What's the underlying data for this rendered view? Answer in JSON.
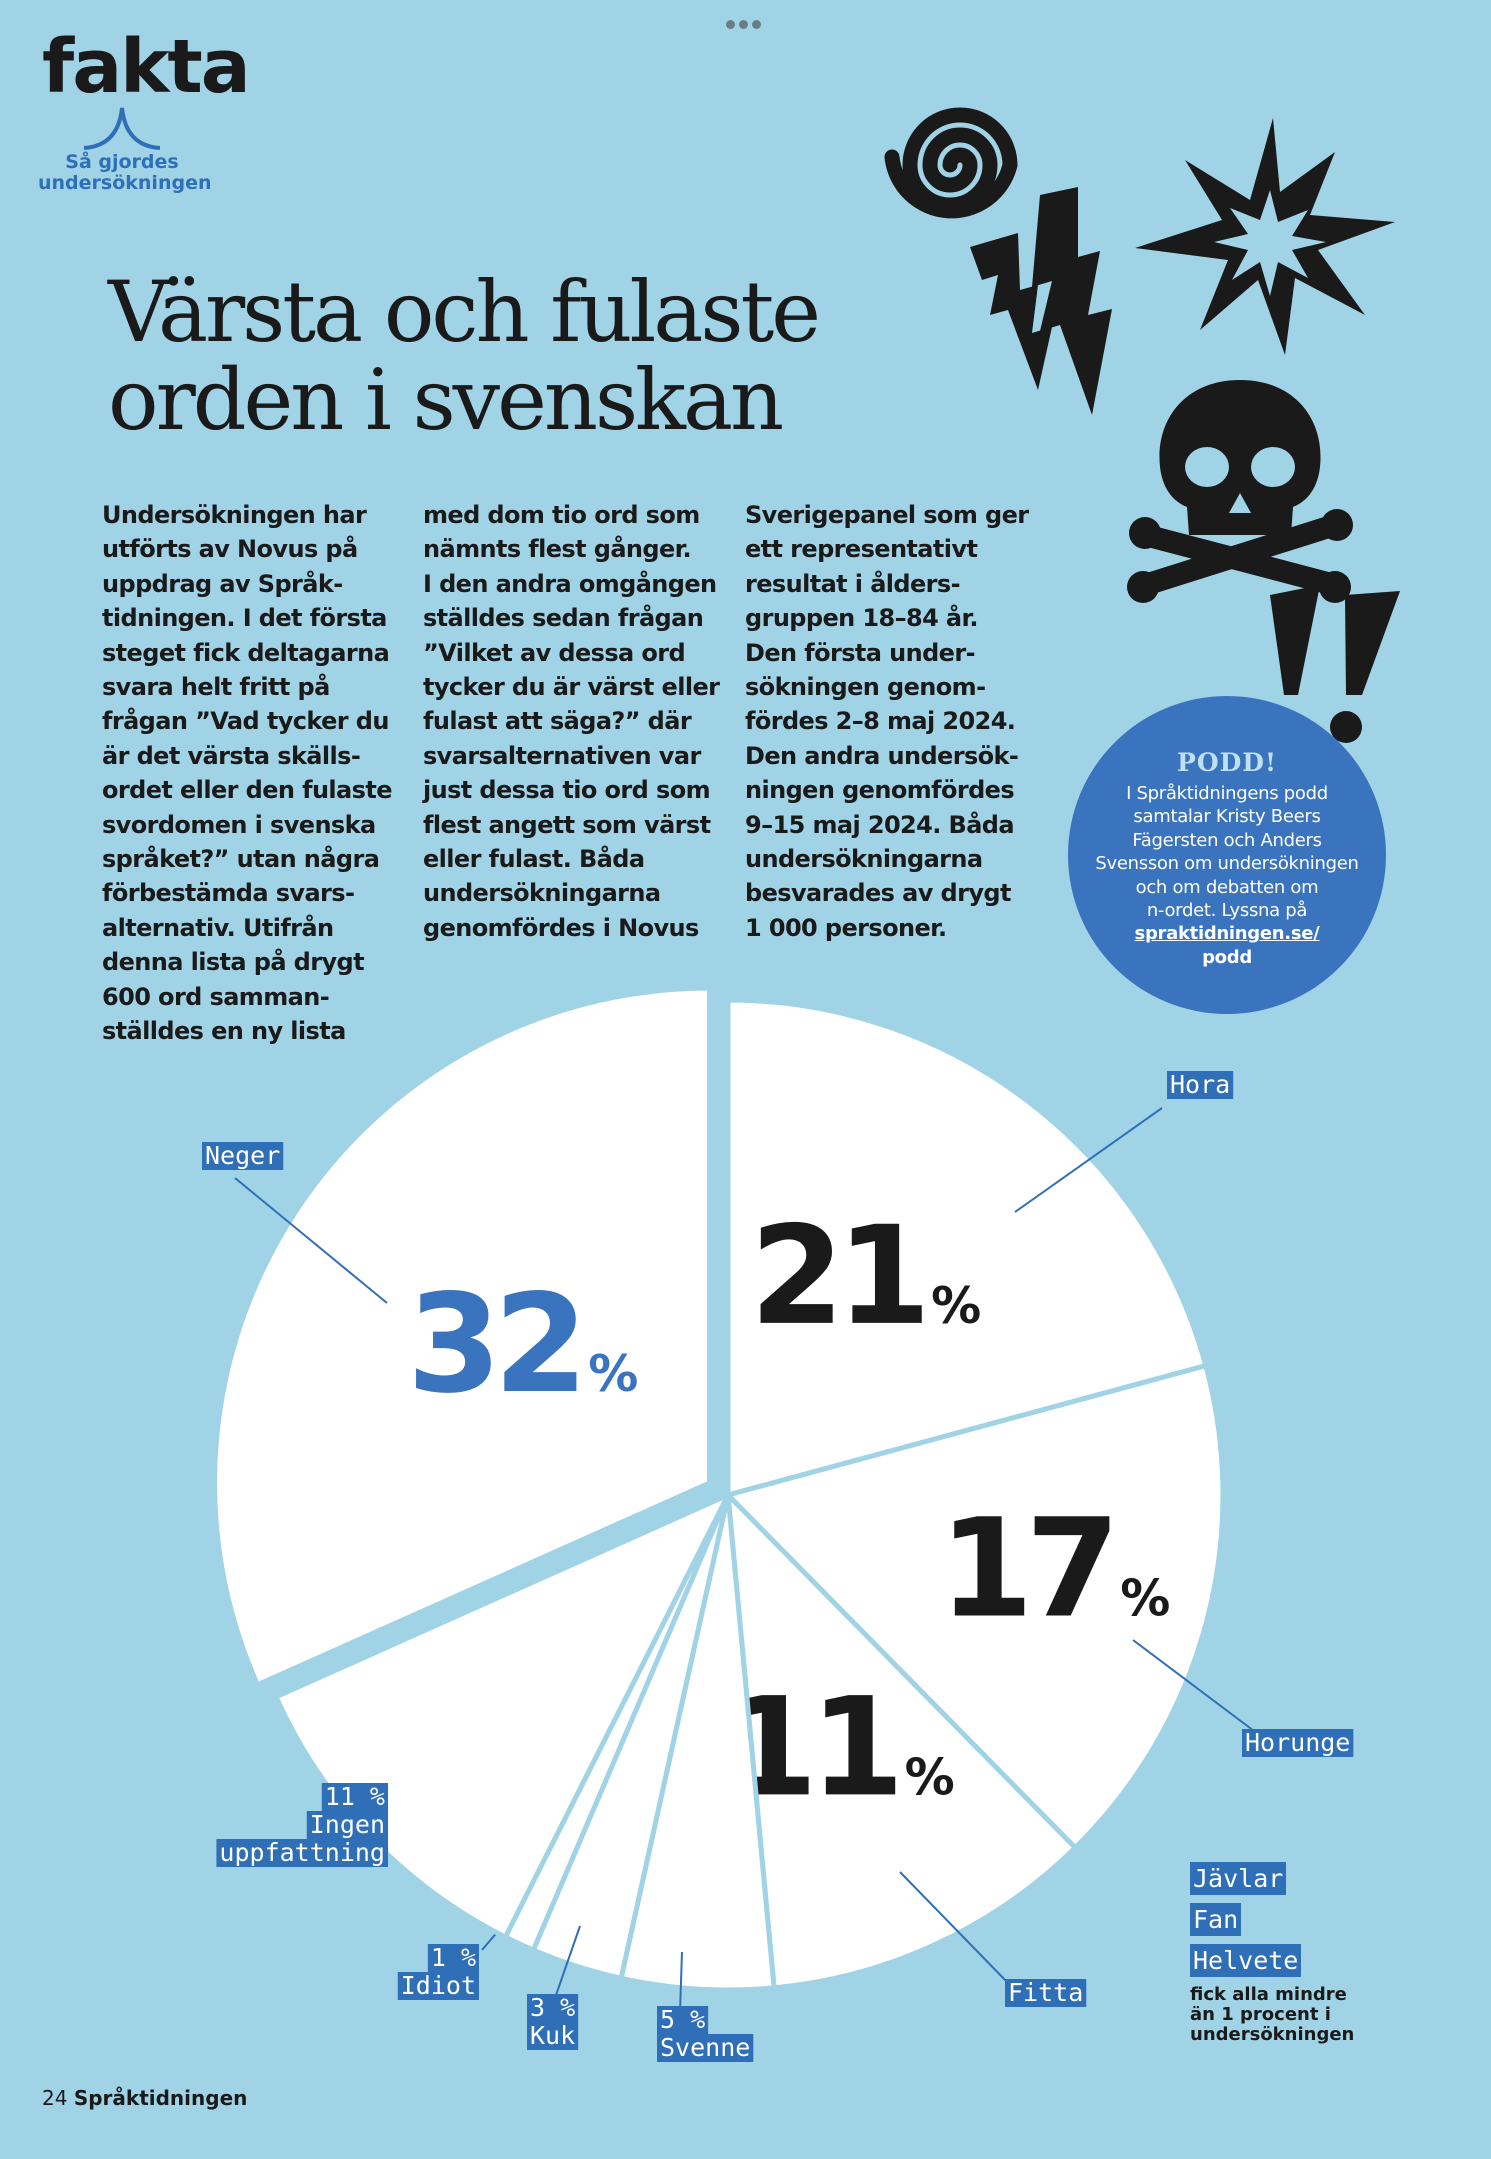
{
  "header": {
    "section_label": "fakta",
    "section_sublabel": "Så gjordes undersökningen",
    "title_line1": "Värsta och fulaste",
    "title_line2": "orden i svenskan"
  },
  "body_text": {
    "columns": [
      [
        "Undersökningen har",
        "utförts av Novus på",
        "uppdrag av Språk-",
        "tidningen. I det första",
        "steget fick deltagarna",
        "svara helt fritt på",
        "frågan ”Vad tycker du",
        "är det värsta skälls-",
        "ordet eller den fulaste",
        "svordomen i svenska",
        "språket?” utan några",
        "förbestämda svars-",
        "alternativ. Utifrån",
        "denna lista på drygt",
        "600 ord samman-",
        "ställdes en ny lista"
      ],
      [
        "med dom tio ord som",
        "nämnts flest gånger.",
        "I den andra omgången",
        "ställdes sedan frågan",
        "”Vilket av dessa ord",
        "tycker du är värst eller",
        "fulast att säga?” där",
        "svarsalternativen var",
        "just dessa tio ord som",
        "flest angett som värst",
        "eller fulast. Båda",
        "undersökningarna",
        "genomfördes i Novus"
      ],
      [
        "Sverigepanel som ger",
        "ett representativt",
        "resultat i ålders-",
        "gruppen 18–84 år.",
        "Den första under-",
        "sökningen genom-",
        "fördes 2–8 maj 2024.",
        "Den andra undersök-",
        "ningen genomfördes",
        "9–15 maj 2024. Båda",
        "undersökningarna",
        "besvarades av drygt",
        "1 000 personer."
      ]
    ]
  },
  "podd": {
    "title": "PODD!",
    "lines": [
      "I Språktidningens podd",
      "samtalar Kristy Beers",
      "Fägersten och Anders",
      "Svensson om undersökningen",
      "och om debatten om",
      "n-ordet. Lyssna på"
    ],
    "link": "spraktidningen.se/",
    "link_suffix": "podd"
  },
  "chart_data": {
    "type": "pie",
    "title": "Värsta och fulaste orden i svenskan",
    "unit": "%",
    "slices": [
      {
        "label": "Hora",
        "value": 21,
        "value_text": "21",
        "color": "#ffffff"
      },
      {
        "label": "Horunge",
        "value": 17,
        "value_text": "17",
        "color": "#ffffff"
      },
      {
        "label": "Fitta",
        "value": 11,
        "value_text": "11",
        "color": "#ffffff"
      },
      {
        "label": "Svenne",
        "value": 5,
        "value_text": "5 %",
        "color": "#ffffff"
      },
      {
        "label": "Kuk",
        "value": 3,
        "value_text": "3 %",
        "color": "#ffffff"
      },
      {
        "label": "Idiot",
        "value": 1,
        "value_text": "1 %",
        "color": "#ffffff"
      },
      {
        "label": "Ingen uppfattning",
        "label_lines": [
          "11 %",
          "Ingen",
          "uppfattning"
        ],
        "value": 11,
        "value_text": "11 %",
        "color": "#ffffff"
      },
      {
        "label": "Neger",
        "value": 32,
        "value_text": "32",
        "color": "#ffffff",
        "exploded": true,
        "value_color": "#3a73be"
      }
    ],
    "other_words": [
      "Jävlar",
      "Fan",
      "Helvete"
    ],
    "other_note_lines": [
      "fick alla mindre",
      "än 1 procent i",
      "undersökningen"
    ],
    "colors": {
      "background": "#a0d3e5",
      "slice": "#ffffff",
      "accent_blue": "#3a73be",
      "label_blue": "#2f6fb8",
      "text": "#1a1a1a"
    }
  },
  "footer": {
    "page_number": "24",
    "publication": "Språktidningen"
  }
}
